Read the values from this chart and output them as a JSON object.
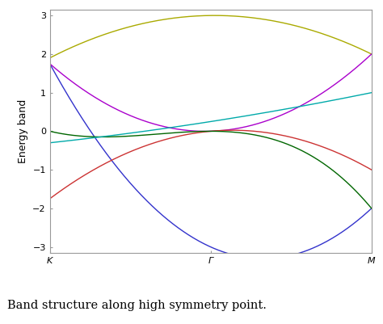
{
  "title": "Band structure along high symmetry point.",
  "ylabel": "Energy band",
  "xtick_labels": [
    "K",
    "Γ",
    "M"
  ],
  "xtick_positions": [
    0.0,
    0.5,
    1.0
  ],
  "ylim": [
    -3.15,
    3.15
  ],
  "yticks": [
    -3,
    -2,
    -1,
    0,
    1,
    2,
    3
  ],
  "background_color": "#ffffff",
  "line_colors": [
    "#3333cc",
    "#aaaa00",
    "#aa00cc",
    "#cc3333",
    "#006600",
    "#00aaaa"
  ],
  "n_points": 500,
  "figsize": [
    4.74,
    4.01
  ],
  "dpi": 100
}
